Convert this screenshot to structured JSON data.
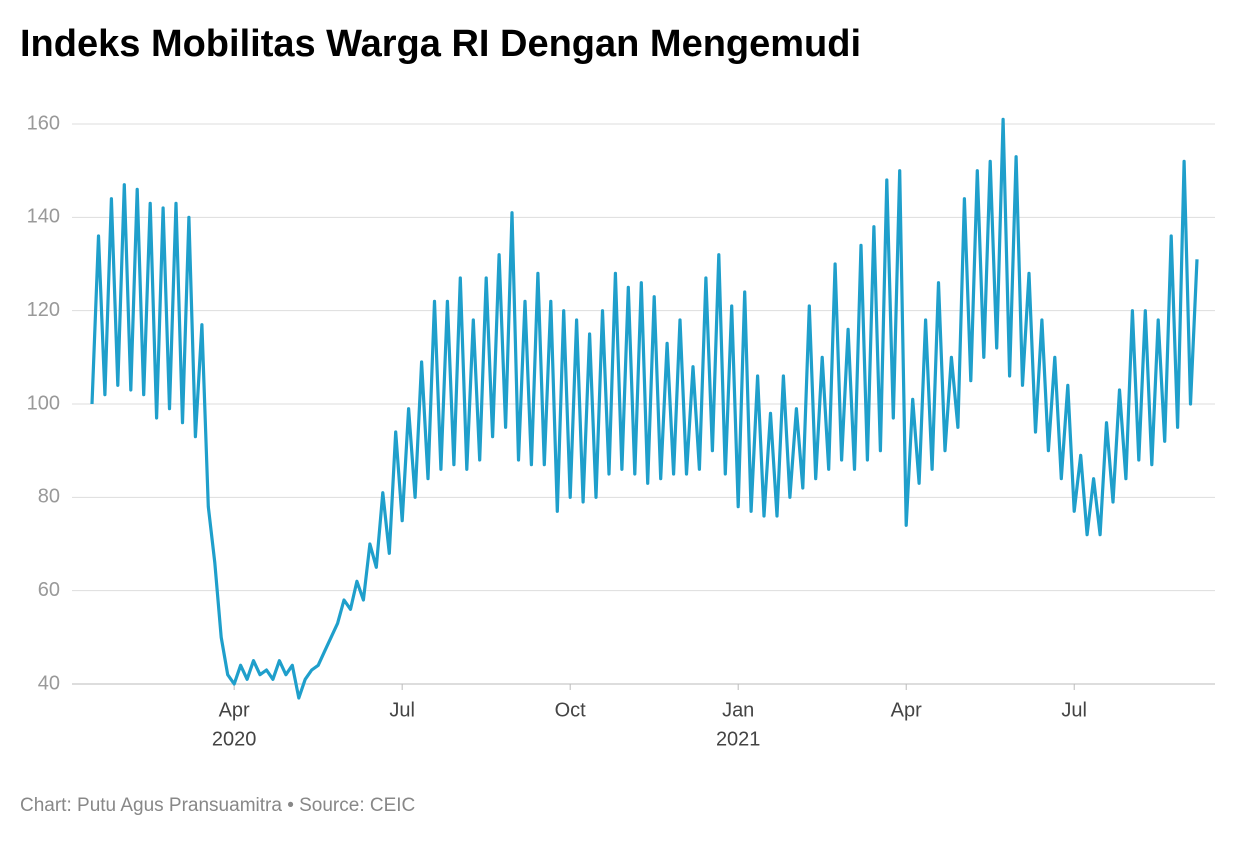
{
  "chart_data": {
    "type": "line",
    "title": "Indeks Mobilitas Warga RI Dengan Mengemudi",
    "footer": "Chart: Putu Agus Pransuamitra • Source: CEIC",
    "categories": [
      null,
      null,
      null,
      null,
      null,
      null,
      null,
      null,
      null,
      null,
      null,
      null,
      null,
      null,
      null,
      null,
      null,
      null,
      null,
      null,
      null,
      null,
      "Apr",
      null,
      null,
      null,
      null,
      null,
      null,
      null,
      null,
      null,
      null,
      null,
      null,
      null,
      null,
      null,
      null,
      null,
      null,
      null,
      null,
      null,
      null,
      null,
      null,
      null,
      "Jul",
      null,
      null,
      null,
      null,
      null,
      null,
      null,
      null,
      null,
      null,
      null,
      null,
      null,
      null,
      null,
      null,
      null,
      null,
      null,
      null,
      null,
      null,
      null,
      null,
      null,
      "Oct",
      null,
      null,
      null,
      null,
      null,
      null,
      null,
      null,
      null,
      null,
      null,
      null,
      null,
      null,
      null,
      null,
      null,
      null,
      null,
      null,
      null,
      null,
      null,
      null,
      null,
      "Jan",
      null,
      null,
      null,
      null,
      null,
      null,
      null,
      null,
      null,
      null,
      null,
      null,
      null,
      null,
      null,
      null,
      null,
      null,
      null,
      null,
      null,
      null,
      null,
      null,
      null,
      "Apr",
      null,
      null,
      null,
      null,
      null,
      null,
      null,
      null,
      null,
      null,
      null,
      null,
      null,
      null,
      null,
      null,
      null,
      null,
      null,
      null,
      null,
      null,
      null,
      null,
      null,
      "Jul",
      null,
      null,
      null,
      null,
      null,
      null,
      null,
      null,
      null,
      null,
      null,
      null,
      null,
      null,
      null,
      null,
      null,
      null,
      null
    ],
    "category_years": [
      null,
      null,
      null,
      null,
      null,
      null,
      null,
      null,
      null,
      null,
      null,
      null,
      null,
      null,
      null,
      null,
      null,
      null,
      null,
      null,
      null,
      null,
      "2020",
      null,
      null,
      null,
      null,
      null,
      null,
      null,
      null,
      null,
      null,
      null,
      null,
      null,
      null,
      null,
      null,
      null,
      null,
      null,
      null,
      null,
      null,
      null,
      null,
      null,
      null,
      null,
      null,
      null,
      null,
      null,
      null,
      null,
      null,
      null,
      null,
      null,
      null,
      null,
      null,
      null,
      null,
      null,
      null,
      null,
      null,
      null,
      null,
      null,
      null,
      null,
      null,
      null,
      null,
      null,
      null,
      null,
      null,
      null,
      null,
      null,
      null,
      null,
      null,
      null,
      null,
      null,
      null,
      null,
      null,
      null,
      null,
      null,
      null,
      null,
      null,
      null,
      "2021",
      null,
      null,
      null,
      null,
      null,
      null,
      null,
      null,
      null,
      null,
      null,
      null,
      null,
      null,
      null,
      null,
      null,
      null,
      null,
      null,
      null,
      null,
      null,
      null,
      null,
      null,
      null,
      null,
      null,
      null,
      null,
      null,
      null,
      null,
      null,
      null,
      null,
      null,
      null,
      null,
      null,
      null,
      null,
      null,
      null,
      null,
      null,
      null,
      null,
      null,
      null,
      null,
      null,
      null,
      null,
      null,
      null,
      null,
      null,
      null,
      null,
      null,
      null,
      null,
      null,
      null,
      null,
      null,
      null,
      null,
      null,
      null,
      null,
      null,
      null
    ],
    "series": [
      {
        "name": "Indeks Mobilitas",
        "color": "#1f9fcb",
        "values": [
          100,
          136,
          102,
          144,
          104,
          147,
          103,
          146,
          102,
          143,
          97,
          142,
          99,
          143,
          96,
          140,
          93,
          117,
          78,
          66,
          50,
          42,
          40,
          44,
          41,
          45,
          42,
          43,
          41,
          45,
          42,
          44,
          37,
          41,
          43,
          44,
          47,
          50,
          53,
          58,
          56,
          62,
          58,
          70,
          65,
          81,
          68,
          94,
          75,
          99,
          80,
          109,
          84,
          122,
          86,
          122,
          87,
          127,
          86,
          118,
          88,
          127,
          93,
          132,
          95,
          141,
          88,
          122,
          87,
          128,
          87,
          122,
          77,
          120,
          80,
          118,
          79,
          115,
          80,
          120,
          85,
          128,
          86,
          125,
          85,
          126,
          83,
          123,
          84,
          113,
          85,
          118,
          85,
          108,
          86,
          127,
          90,
          132,
          85,
          121,
          78,
          124,
          77,
          106,
          76,
          98,
          76,
          106,
          80,
          99,
          82,
          121,
          84,
          110,
          86,
          130,
          88,
          116,
          86,
          134,
          88,
          138,
          90,
          148,
          97,
          150,
          74,
          101,
          83,
          118,
          86,
          126,
          90,
          110,
          95,
          144,
          105,
          150,
          110,
          152,
          112,
          161,
          106,
          153,
          104,
          128,
          94,
          118,
          90,
          110,
          84,
          104,
          77,
          89,
          72,
          84,
          72,
          96,
          79,
          103,
          84,
          120,
          88,
          120,
          87,
          118,
          92,
          136,
          95,
          152,
          100,
          131
        ]
      }
    ],
    "ylim": [
      40,
      160
    ],
    "yticks": [
      40,
      60,
      80,
      100,
      120,
      140,
      160
    ],
    "grid": true
  }
}
